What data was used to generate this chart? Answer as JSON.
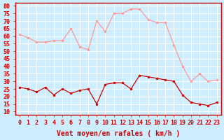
{
  "hours": [
    0,
    1,
    2,
    3,
    4,
    5,
    6,
    7,
    8,
    9,
    10,
    11,
    12,
    13,
    14,
    15,
    16,
    17,
    18,
    19,
    20,
    21,
    22,
    23
  ],
  "rafales": [
    61,
    59,
    56,
    56,
    57,
    57,
    65,
    53,
    51,
    70,
    63,
    75,
    75,
    78,
    78,
    71,
    69,
    69,
    54,
    40,
    30,
    35,
    30,
    31
  ],
  "moyen": [
    26,
    25,
    23,
    26,
    21,
    25,
    22,
    24,
    25,
    15,
    28,
    29,
    29,
    25,
    34,
    33,
    32,
    31,
    30,
    21,
    16,
    15,
    14,
    16
  ],
  "bg_color": "#cceeff",
  "grid_color": "#ffffff",
  "line_color_rafales": "#ff9999",
  "line_color_moyen": "#cc0000",
  "xlabel": "Vent moyen/en rafales ( km/h )",
  "ylabel_ticks": [
    10,
    15,
    20,
    25,
    30,
    35,
    40,
    45,
    50,
    55,
    60,
    65,
    70,
    75,
    80
  ],
  "ylim": [
    8,
    82
  ],
  "xlim": [
    -0.5,
    23.5
  ],
  "axis_fontsize": 7,
  "tick_fontsize": 6
}
